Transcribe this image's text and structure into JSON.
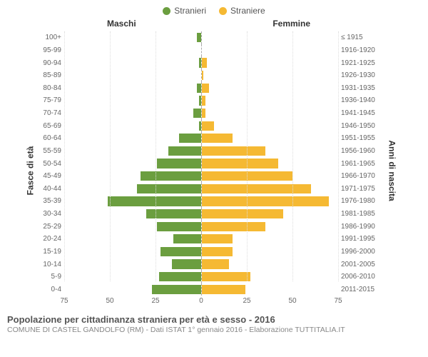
{
  "legend": {
    "male": {
      "label": "Stranieri",
      "color": "#6b9e3f"
    },
    "female": {
      "label": "Straniere",
      "color": "#f5b933"
    }
  },
  "headers": {
    "male": "Maschi",
    "female": "Femmine"
  },
  "axes": {
    "left_title": "Fasce di età",
    "right_title": "Anni di nascita",
    "x_max": 75,
    "x_ticks": [
      75,
      50,
      25,
      0,
      25,
      50,
      75
    ]
  },
  "style": {
    "background": "#ffffff",
    "grid_color": "#dddddd",
    "center_line": "#aaaaaa",
    "label_color": "#666666",
    "font_size_tick": 10,
    "font_size_axis_title": 12
  },
  "rows": [
    {
      "age": "100+",
      "year": "≤ 1915",
      "m": 2,
      "f": 0
    },
    {
      "age": "95-99",
      "year": "1916-1920",
      "m": 0,
      "f": 0
    },
    {
      "age": "90-94",
      "year": "1921-1925",
      "m": 1,
      "f": 3
    },
    {
      "age": "85-89",
      "year": "1926-1930",
      "m": 0,
      "f": 1
    },
    {
      "age": "80-84",
      "year": "1931-1935",
      "m": 2,
      "f": 4
    },
    {
      "age": "75-79",
      "year": "1936-1940",
      "m": 1,
      "f": 2
    },
    {
      "age": "70-74",
      "year": "1941-1945",
      "m": 4,
      "f": 2
    },
    {
      "age": "65-69",
      "year": "1946-1950",
      "m": 1,
      "f": 7
    },
    {
      "age": "60-64",
      "year": "1951-1955",
      "m": 12,
      "f": 17
    },
    {
      "age": "55-59",
      "year": "1956-1960",
      "m": 18,
      "f": 35
    },
    {
      "age": "50-54",
      "year": "1961-1965",
      "m": 24,
      "f": 42
    },
    {
      "age": "45-49",
      "year": "1966-1970",
      "m": 33,
      "f": 50
    },
    {
      "age": "40-44",
      "year": "1971-1975",
      "m": 35,
      "f": 60
    },
    {
      "age": "35-39",
      "year": "1976-1980",
      "m": 51,
      "f": 70
    },
    {
      "age": "30-34",
      "year": "1981-1985",
      "m": 30,
      "f": 45
    },
    {
      "age": "25-29",
      "year": "1986-1990",
      "m": 24,
      "f": 35
    },
    {
      "age": "20-24",
      "year": "1991-1995",
      "m": 15,
      "f": 17
    },
    {
      "age": "15-19",
      "year": "1996-2000",
      "m": 22,
      "f": 17
    },
    {
      "age": "10-14",
      "year": "2001-2005",
      "m": 16,
      "f": 15
    },
    {
      "age": "5-9",
      "year": "2006-2010",
      "m": 23,
      "f": 27
    },
    {
      "age": "0-4",
      "year": "2011-2015",
      "m": 27,
      "f": 24
    }
  ],
  "footer": {
    "title": "Popolazione per cittadinanza straniera per età e sesso - 2016",
    "subtitle": "COMUNE DI CASTEL GANDOLFO (RM) - Dati ISTAT 1° gennaio 2016 - Elaborazione TUTTITALIA.IT"
  }
}
